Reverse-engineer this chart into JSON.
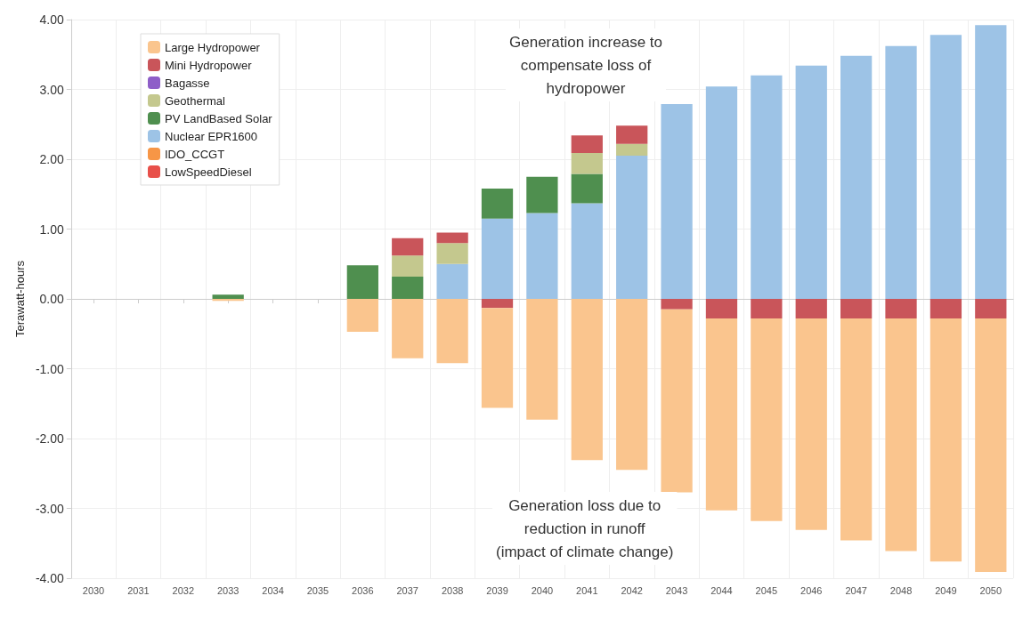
{
  "chart_data": {
    "type": "bar",
    "stacked": true,
    "ylabel": "Terawatt-hours",
    "categories": [
      "2030",
      "2031",
      "2032",
      "2033",
      "2034",
      "2035",
      "2036",
      "2037",
      "2038",
      "2039",
      "2040",
      "2041",
      "2042",
      "2043",
      "2044",
      "2045",
      "2046",
      "2047",
      "2048",
      "2049",
      "2050"
    ],
    "series": [
      {
        "name": "LowSpeedDiesel",
        "color": "#e8504a",
        "values": [
          null,
          null,
          null,
          null,
          null,
          null,
          null,
          null,
          null,
          null,
          null,
          null,
          null,
          null,
          null,
          null,
          null,
          null,
          null,
          null,
          null
        ]
      },
      {
        "name": "IDO_CCGT",
        "color": "#f79646",
        "values": [
          null,
          null,
          null,
          null,
          null,
          null,
          null,
          null,
          null,
          null,
          null,
          null,
          null,
          null,
          null,
          null,
          null,
          null,
          null,
          null,
          null
        ]
      },
      {
        "name": "Nuclear EPR1600",
        "color": "#9dc3e6",
        "values": [
          null,
          null,
          null,
          null,
          null,
          null,
          null,
          null,
          0.5,
          1.15,
          1.23,
          1.37,
          2.05,
          2.79,
          3.04,
          3.2,
          3.34,
          3.48,
          3.62,
          3.78,
          3.92
        ]
      },
      {
        "name": "PV LandBased Solar",
        "color": "#4f8f4f",
        "values": [
          null,
          null,
          null,
          0.06,
          null,
          null,
          0.48,
          0.32,
          null,
          0.43,
          0.52,
          0.42,
          null,
          null,
          null,
          null,
          null,
          null,
          null,
          null,
          null
        ]
      },
      {
        "name": "Geothermal",
        "color": "#c4c88e",
        "values": [
          null,
          null,
          null,
          null,
          null,
          null,
          null,
          0.3,
          0.3,
          null,
          null,
          0.3,
          0.17,
          null,
          null,
          null,
          null,
          null,
          null,
          null,
          null
        ]
      },
      {
        "name": "Bagasse",
        "color": "#8e5ec8",
        "values": [
          null,
          null,
          null,
          null,
          null,
          null,
          null,
          null,
          null,
          null,
          null,
          null,
          null,
          null,
          null,
          null,
          null,
          null,
          null,
          null,
          null
        ]
      },
      {
        "name": "Mini Hydropower",
        "color": "#c9555a",
        "values": [
          null,
          null,
          null,
          null,
          null,
          null,
          null,
          0.25,
          0.15,
          -0.13,
          null,
          0.25,
          0.26,
          -0.15,
          -0.28,
          -0.28,
          -0.28,
          -0.28,
          -0.28,
          -0.28,
          -0.28
        ]
      },
      {
        "name": "Large Hydropower",
        "color": "#fac58e",
        "values": [
          null,
          null,
          null,
          -0.03,
          null,
          null,
          -0.47,
          -0.85,
          -0.92,
          -1.43,
          -1.73,
          -2.31,
          -2.45,
          -2.62,
          -2.75,
          -2.9,
          -3.03,
          -3.18,
          -3.33,
          -3.48,
          -3.63
        ]
      }
    ],
    "ylim": [
      -4,
      4
    ],
    "yticks": [
      {
        "value": -4,
        "label": "-4.00"
      },
      {
        "value": -3,
        "label": "-3.00"
      },
      {
        "value": -2,
        "label": "-2.00"
      },
      {
        "value": -1,
        "label": "-1.00"
      },
      {
        "value": 0,
        "label": "0.00"
      },
      {
        "value": 1,
        "label": "1.00"
      },
      {
        "value": 2,
        "label": "2.00"
      },
      {
        "value": 3,
        "label": "3.00"
      },
      {
        "value": 4,
        "label": "4.00"
      }
    ],
    "grid": true,
    "legend": "top left",
    "annotations": [
      "Generation increase to\ncompensate loss of\nhydropower",
      "Generation loss due to\nreduction in runoff\n(impact of climate change)"
    ]
  }
}
